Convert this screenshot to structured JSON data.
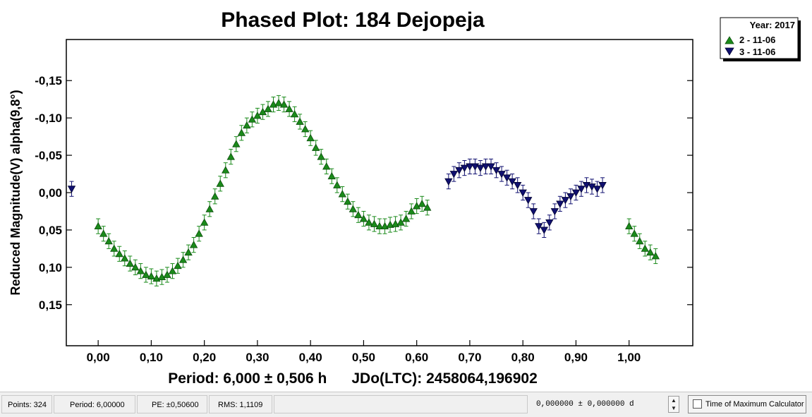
{
  "chart_data": {
    "type": "scatter",
    "title": "Phased Plot: 184 Dejopeja",
    "xlabel": "Period: 6,000 ± 0,506 h      JDo(LTC): 2458064,196902",
    "ylabel": "Reduced Magnitude(V) alpha(9,8°)",
    "xlim": [
      -0.06,
      1.12
    ],
    "ylim": [
      0.205,
      -0.205
    ],
    "y_inverted": true,
    "grid": false,
    "x_ticks": [
      "0,00",
      "0,10",
      "0,20",
      "0,30",
      "0,40",
      "0,50",
      "0,60",
      "0,70",
      "0,80",
      "0,90",
      "1,00"
    ],
    "x_tick_values": [
      0,
      0.1,
      0.2,
      0.3,
      0.4,
      0.5,
      0.6,
      0.7,
      0.8,
      0.9,
      1.0
    ],
    "y_ticks": [
      "-0,15",
      "-0,10",
      "-0,05",
      "0,00",
      "0,05",
      "0,10",
      "0,15"
    ],
    "y_tick_values": [
      -0.15,
      -0.1,
      -0.05,
      0,
      0.05,
      0.1,
      0.15
    ],
    "legend": {
      "title": "Year: 2017",
      "placement": "top-right"
    },
    "series": [
      {
        "name": "2 - 11-06",
        "marker": "triangle-up",
        "color": "#1a8a1a",
        "error": 0.01,
        "x": [
          0.0,
          0.01,
          0.02,
          0.03,
          0.04,
          0.05,
          0.06,
          0.07,
          0.08,
          0.09,
          0.1,
          0.11,
          0.12,
          0.13,
          0.14,
          0.15,
          0.16,
          0.17,
          0.18,
          0.19,
          0.2,
          0.21,
          0.22,
          0.23,
          0.24,
          0.25,
          0.26,
          0.27,
          0.28,
          0.29,
          0.3,
          0.31,
          0.32,
          0.33,
          0.34,
          0.35,
          0.36,
          0.37,
          0.38,
          0.39,
          0.4,
          0.41,
          0.42,
          0.43,
          0.44,
          0.45,
          0.46,
          0.47,
          0.48,
          0.49,
          0.5,
          0.51,
          0.52,
          0.53,
          0.54,
          0.55,
          0.56,
          0.57,
          0.58,
          0.59,
          0.6,
          0.61,
          0.62,
          1.0,
          1.01,
          1.02,
          1.03,
          1.04,
          1.05
        ],
        "y": [
          0.045,
          0.055,
          0.065,
          0.075,
          0.082,
          0.088,
          0.095,
          0.1,
          0.105,
          0.11,
          0.112,
          0.115,
          0.113,
          0.11,
          0.105,
          0.098,
          0.09,
          0.08,
          0.07,
          0.055,
          0.04,
          0.022,
          0.005,
          -0.012,
          -0.03,
          -0.048,
          -0.065,
          -0.08,
          -0.09,
          -0.098,
          -0.103,
          -0.108,
          -0.112,
          -0.118,
          -0.12,
          -0.118,
          -0.112,
          -0.105,
          -0.095,
          -0.085,
          -0.073,
          -0.06,
          -0.048,
          -0.035,
          -0.022,
          -0.01,
          0.002,
          0.012,
          0.022,
          0.03,
          0.035,
          0.04,
          0.042,
          0.045,
          0.045,
          0.043,
          0.042,
          0.04,
          0.035,
          0.025,
          0.018,
          0.015,
          0.02,
          0.045,
          0.055,
          0.065,
          0.075,
          0.08,
          0.085
        ]
      },
      {
        "name": "3 - 11-06",
        "marker": "triangle-down",
        "color": "#101070",
        "error": 0.01,
        "x": [
          -0.05,
          0.66,
          0.67,
          0.68,
          0.69,
          0.7,
          0.71,
          0.72,
          0.73,
          0.74,
          0.75,
          0.76,
          0.77,
          0.78,
          0.79,
          0.8,
          0.81,
          0.82,
          0.83,
          0.84,
          0.85,
          0.86,
          0.87,
          0.88,
          0.89,
          0.9,
          0.91,
          0.92,
          0.93,
          0.94,
          0.95
        ],
        "y": [
          -0.005,
          -0.015,
          -0.025,
          -0.03,
          -0.033,
          -0.035,
          -0.035,
          -0.033,
          -0.035,
          -0.035,
          -0.03,
          -0.025,
          -0.02,
          -0.015,
          -0.01,
          0.0,
          0.01,
          0.025,
          0.045,
          0.05,
          0.04,
          0.025,
          0.015,
          0.01,
          0.005,
          0.0,
          -0.005,
          -0.01,
          -0.008,
          -0.005,
          -0.01
        ]
      }
    ]
  },
  "statusbar": {
    "points": "Points: 324",
    "period": "Period: 6,00000",
    "pe": "PE: ±0,50600",
    "rms": "RMS: 1,1109",
    "offset": "0,000000  ±  0,000000 d",
    "tmc_button": "Time of Maximum Calculator"
  }
}
